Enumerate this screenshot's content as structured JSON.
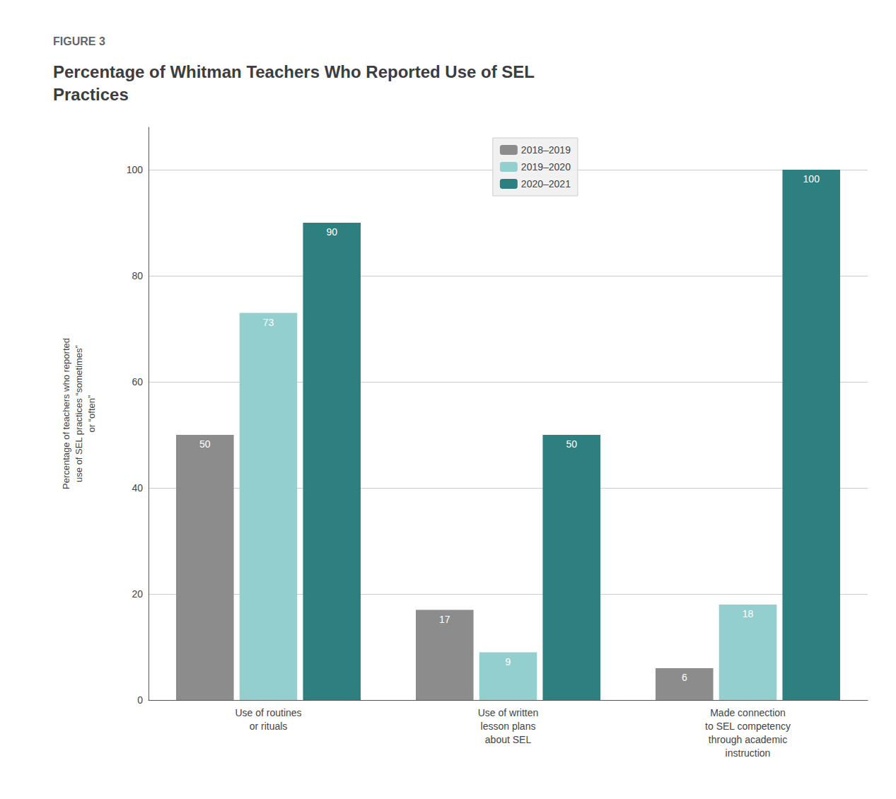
{
  "chart_data": {
    "type": "bar",
    "subtitle": "FIGURE 3",
    "title": "Percentage of Whitman Teachers Who Reported Use of SEL\nPractices",
    "y_label": "Percentage of teachers who reported\nuse of SEL practices “sometimes”\nor “often”",
    "categories": [
      "Use of routines\nor rituals",
      "Use of written\nlesson plans\nabout SEL",
      "Made connection\nto SEL competency\nthrough academic\ninstruction"
    ],
    "series": [
      {
        "name": "2018–2019",
        "values": [
          50,
          17,
          6
        ],
        "color": "#8C8C8C"
      },
      {
        "name": "2019–2020",
        "values": [
          73,
          9,
          18
        ],
        "color": "#93CFCF"
      },
      {
        "name": "2020–2021",
        "values": [
          90,
          50,
          100
        ],
        "color": "#2E7F80"
      }
    ],
    "ylim": [
      0,
      108
    ],
    "yticks": [
      0,
      20,
      40,
      60,
      80,
      100
    ],
    "grid": true,
    "legend": "top",
    "data_labels": true
  }
}
